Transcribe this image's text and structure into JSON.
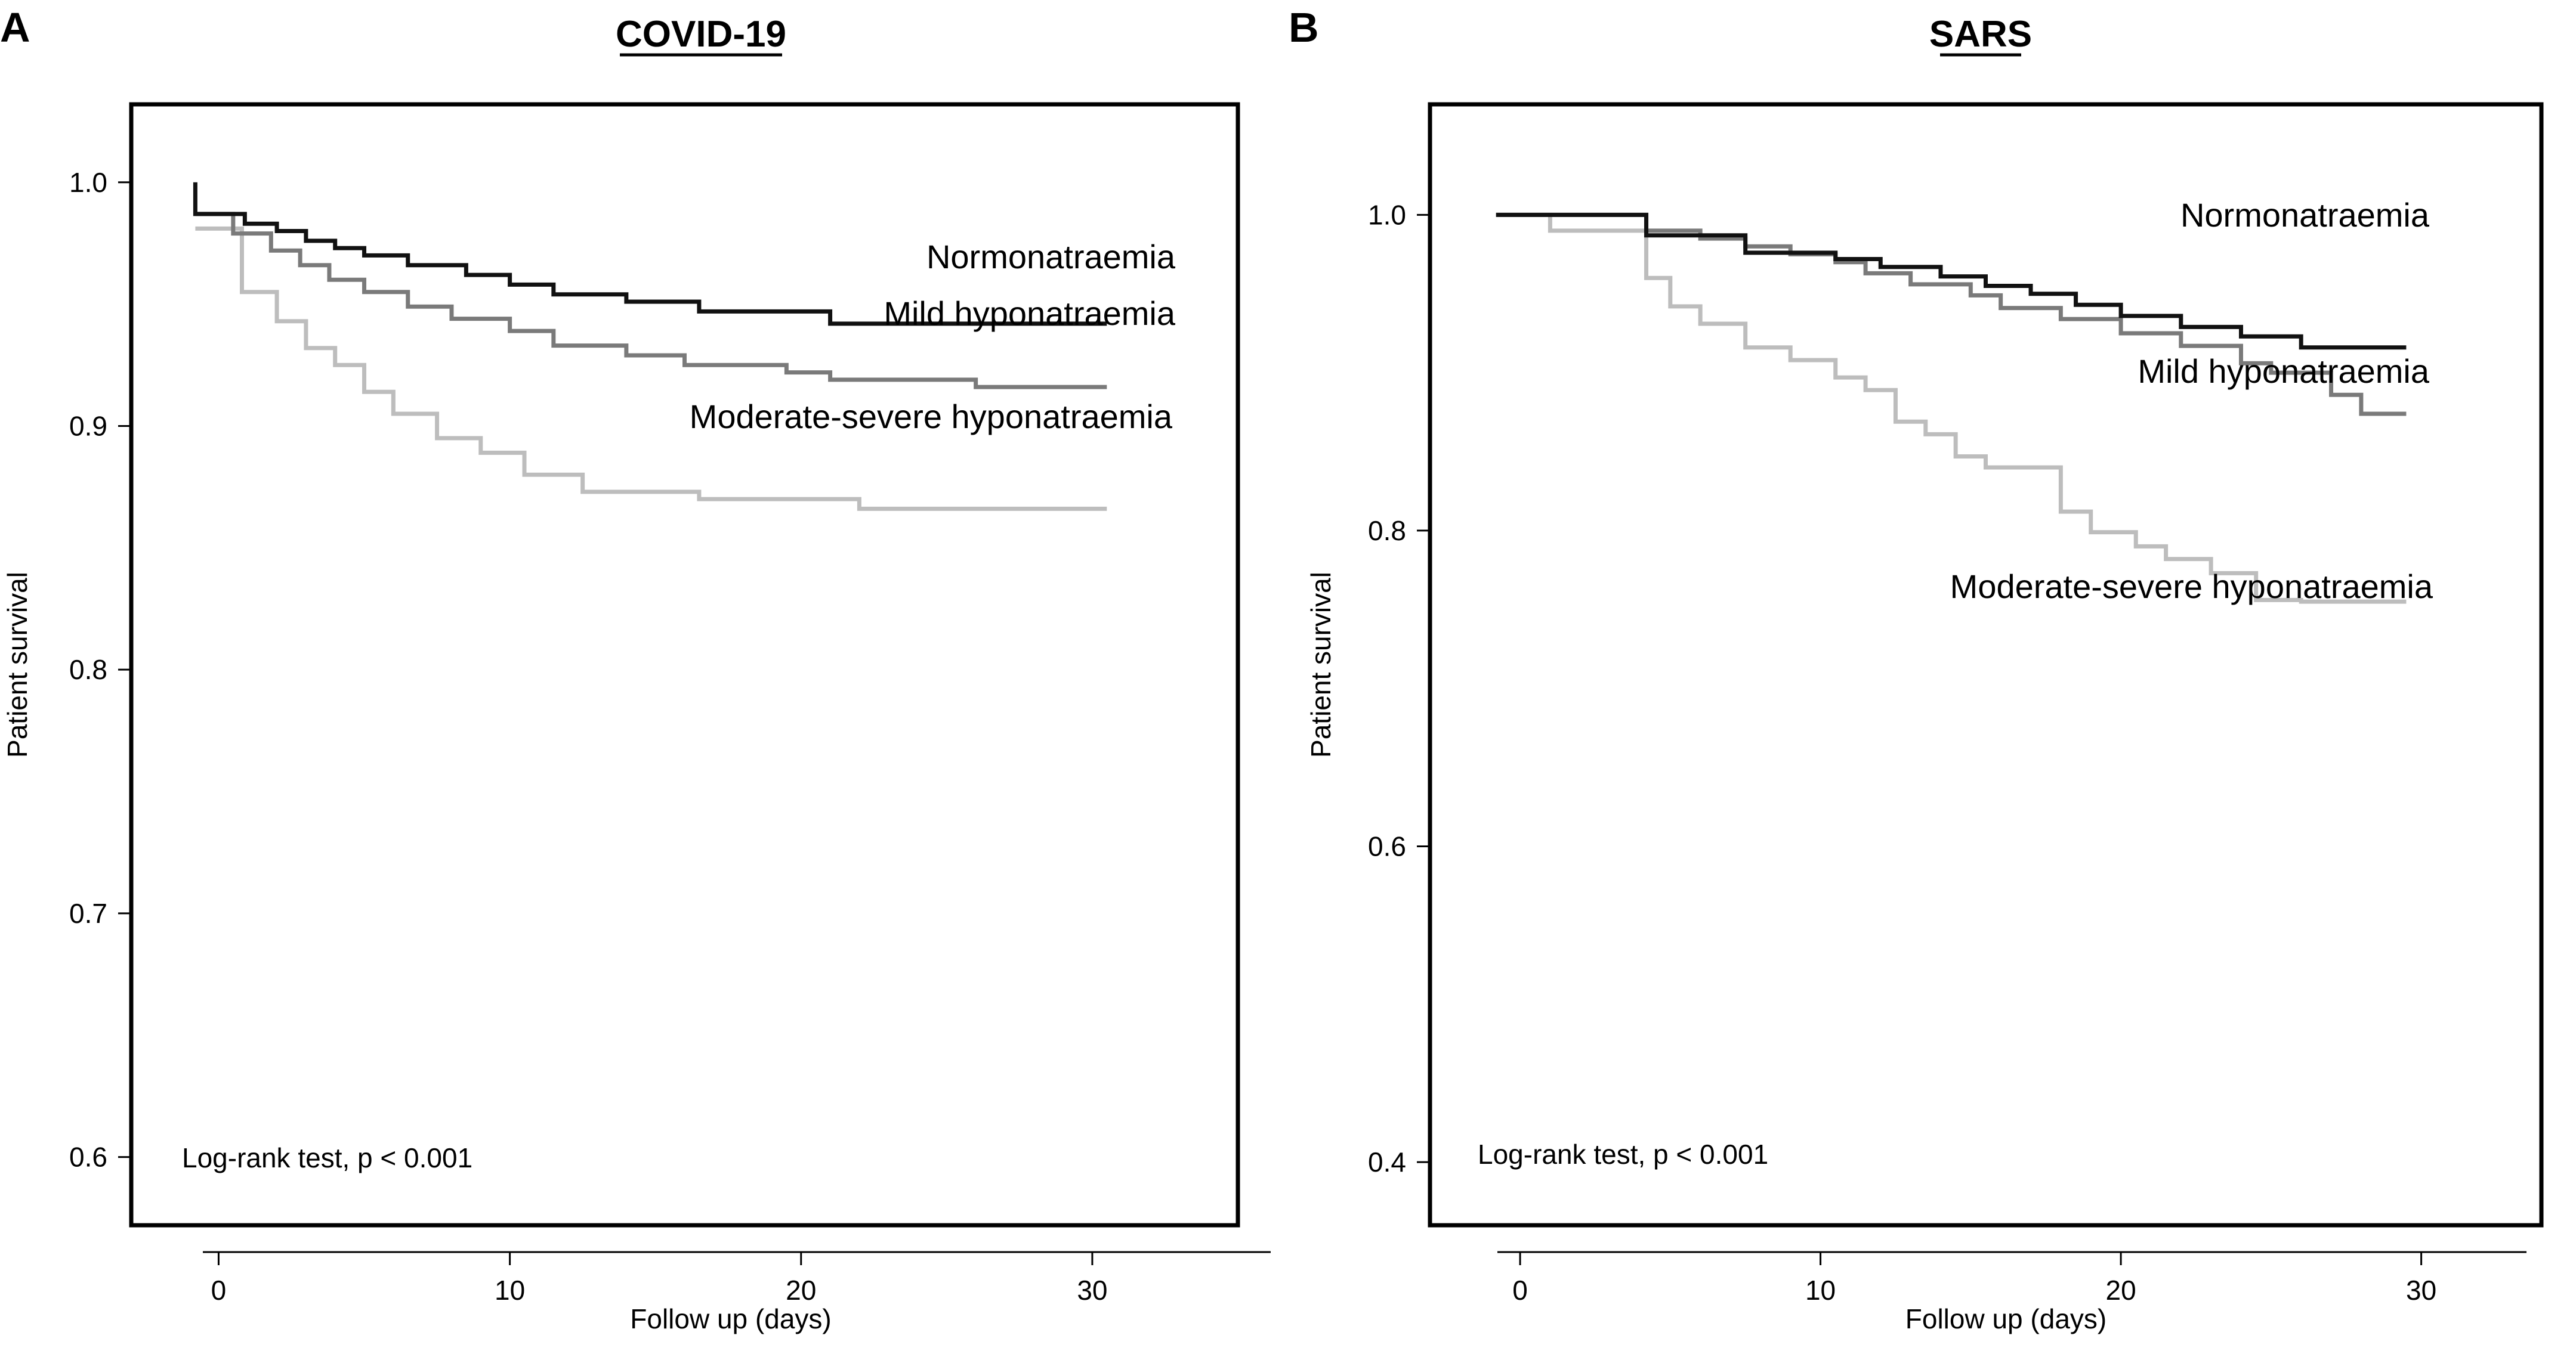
{
  "chart_data": [
    {
      "type": "line",
      "panel_letter": "A",
      "title": "COVID-19",
      "xlabel": "Follow up (days)",
      "ylabel": "Patient survival",
      "xlim": [
        -3,
        35
      ],
      "ylim": [
        0.572,
        1.032
      ],
      "xticks": [
        0,
        10,
        20,
        30
      ],
      "yticks": [
        0.6,
        0.7,
        0.8,
        0.9,
        1.0
      ],
      "ytick_labels": [
        "0.6",
        "0.7",
        "0.8",
        "0.9",
        "1.0"
      ],
      "grid": false,
      "annotation": "Log-rank test, p < 0.001",
      "series": [
        {
          "name": "Normonatraemia",
          "color": "#111111",
          "x": [
            -0.8,
            -0.8,
            0.9,
            2.0,
            3.0,
            4.0,
            5.0,
            6.5,
            8.5,
            10.0,
            11.5,
            14.0,
            16.5,
            21.0,
            30.5
          ],
          "y": [
            1.0,
            0.987,
            0.983,
            0.98,
            0.976,
            0.973,
            0.97,
            0.966,
            0.962,
            0.958,
            0.954,
            0.951,
            0.947,
            0.942,
            0.942
          ]
        },
        {
          "name": "Mild hyponatraemia",
          "color": "#7a7a7a",
          "x": [
            -0.8,
            0.5,
            1.8,
            2.8,
            3.8,
            5.0,
            6.5,
            8.0,
            10.0,
            11.5,
            14.0,
            16.0,
            19.5,
            21.0,
            26.0,
            30.5
          ],
          "y": [
            0.987,
            0.979,
            0.972,
            0.966,
            0.96,
            0.955,
            0.949,
            0.944,
            0.939,
            0.933,
            0.929,
            0.925,
            0.922,
            0.919,
            0.916,
            0.916
          ],
          "label_position": "right"
        },
        {
          "name": "Moderate-severe hyponatraemia",
          "color": "#bdbdbd",
          "x": [
            -0.8,
            0.8,
            2.0,
            3.0,
            4.0,
            5.0,
            6.0,
            7.5,
            9.0,
            10.5,
            12.5,
            16.5,
            22.0,
            30.5
          ],
          "y": [
            0.981,
            0.955,
            0.943,
            0.932,
            0.925,
            0.914,
            0.905,
            0.895,
            0.889,
            0.88,
            0.873,
            0.87,
            0.866,
            0.866
          ]
        }
      ]
    },
    {
      "type": "line",
      "panel_letter": "B",
      "title": "SARS",
      "xlabel": "Follow up (days)",
      "ylabel": "Patient survival",
      "xlim": [
        -3,
        34
      ],
      "ylim": [
        0.36,
        1.07
      ],
      "xticks": [
        0,
        10,
        20,
        30
      ],
      "yticks": [
        0.4,
        0.6,
        0.8,
        1.0
      ],
      "ytick_labels": [
        "0.4",
        "0.6",
        "0.8",
        "1.0"
      ],
      "grid": false,
      "annotation": "Log-rank test, p < 0.001",
      "series": [
        {
          "name": "Normonatraemia",
          "color": "#111111",
          "x": [
            -0.8,
            4.2,
            7.5,
            10.5,
            12.0,
            14.0,
            15.5,
            17.0,
            18.5,
            20.0,
            22.0,
            24.0,
            26.0,
            29.5
          ],
          "y": [
            1.0,
            0.987,
            0.976,
            0.972,
            0.967,
            0.961,
            0.955,
            0.95,
            0.943,
            0.936,
            0.929,
            0.923,
            0.916,
            0.916
          ]
        },
        {
          "name": "Mild hyponatraemia",
          "color": "#7a7a7a",
          "x": [
            -0.8,
            4.2,
            6.0,
            7.5,
            9.0,
            10.5,
            11.5,
            13.0,
            15.0,
            16.0,
            18.0,
            20.0,
            22.0,
            24.0,
            25.0,
            27.0,
            28.0,
            29.5
          ],
          "y": [
            1.0,
            0.99,
            0.985,
            0.98,
            0.975,
            0.97,
            0.963,
            0.956,
            0.949,
            0.941,
            0.934,
            0.925,
            0.917,
            0.906,
            0.9,
            0.886,
            0.874,
            0.874
          ],
          "label_position": "right"
        },
        {
          "name": "Moderate-severe hyponatraemia",
          "color": "#bdbdbd",
          "x": [
            -0.8,
            1.0,
            4.2,
            5.0,
            6.0,
            7.5,
            9.0,
            10.5,
            11.5,
            12.5,
            13.5,
            14.5,
            15.5,
            18.0,
            19.0,
            20.5,
            21.5,
            23.0,
            24.5,
            26.0,
            29.5
          ],
          "y": [
            1.0,
            0.99,
            0.96,
            0.942,
            0.931,
            0.916,
            0.908,
            0.897,
            0.889,
            0.869,
            0.861,
            0.847,
            0.84,
            0.812,
            0.799,
            0.79,
            0.782,
            0.773,
            0.756,
            0.755,
            0.755
          ]
        }
      ]
    }
  ]
}
